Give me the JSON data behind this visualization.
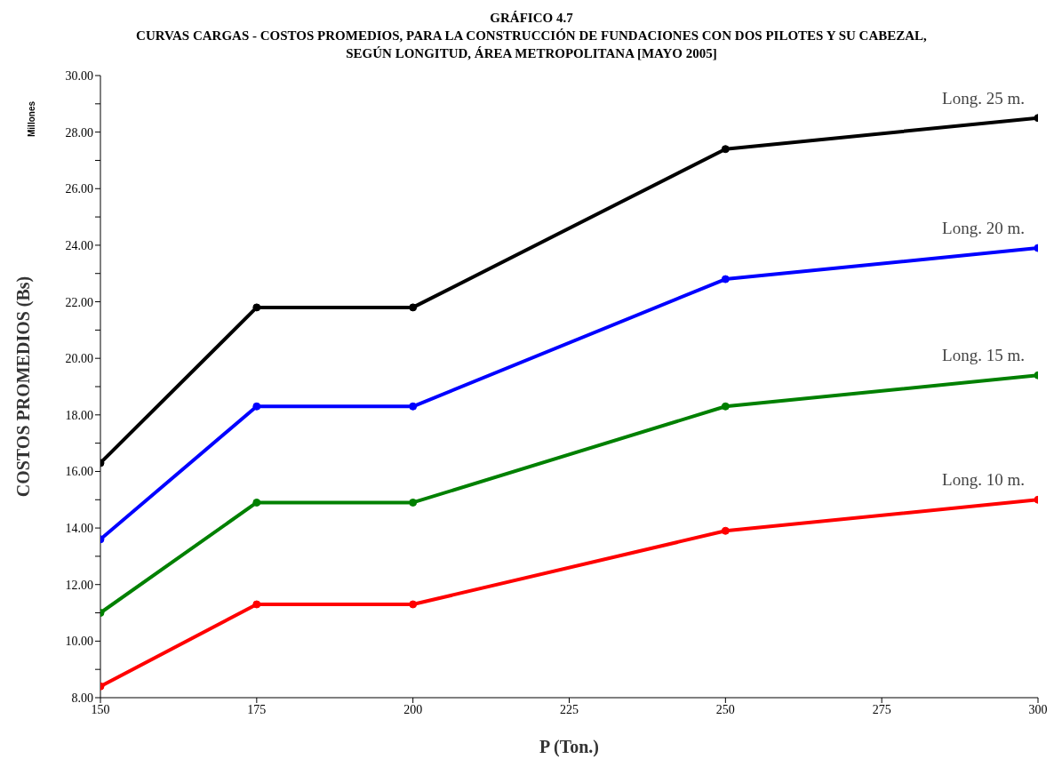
{
  "chart_data": {
    "type": "line",
    "title": "GRÁFICO 4.7",
    "subtitle": "CURVAS CARGAS - COSTOS PROMEDIOS, PARA LA CONSTRUCCIÓN DE FUNDACIONES CON DOS PILOTES Y SU CABEZAL, SEGÚN LONGITUD, ÁREA METROPOLITANA [MAYO 2005]",
    "xlabel": "P (Ton.)",
    "ylabel": "COSTOS PROMEDIOS (Bs)",
    "annotations": [
      "Millones"
    ],
    "x": [
      150,
      175,
      200,
      250,
      300
    ],
    "series": [
      {
        "name": "Long. 25 m.",
        "color": "#000000",
        "values": [
          16.3,
          21.8,
          21.8,
          27.4,
          28.5
        ]
      },
      {
        "name": "Long. 20 m.",
        "color": "#0000ff",
        "values": [
          13.6,
          18.3,
          18.3,
          22.8,
          23.9
        ]
      },
      {
        "name": "Long. 15 m.",
        "color": "#008000",
        "values": [
          11.0,
          14.9,
          14.9,
          18.3,
          19.4
        ]
      },
      {
        "name": "Long. 10 m.",
        "color": "#ff0000",
        "values": [
          8.4,
          11.3,
          11.3,
          13.9,
          15.0
        ]
      }
    ],
    "xlim": [
      150,
      300
    ],
    "xticks": [
      150,
      175,
      200,
      225,
      250,
      275,
      300
    ],
    "ylim": [
      8,
      30
    ],
    "yticks": [
      {
        "value": 8,
        "label": "8.00"
      },
      {
        "value": 9,
        "label": null
      },
      {
        "value": 10,
        "label": "10.00"
      },
      {
        "value": 11,
        "label": null
      },
      {
        "value": 12,
        "label": "12.00"
      },
      {
        "value": 13,
        "label": null
      },
      {
        "value": 14,
        "label": "14.00"
      },
      {
        "value": 15,
        "label": null
      },
      {
        "value": 16,
        "label": "16.00"
      },
      {
        "value": 17,
        "label": null
      },
      {
        "value": 18,
        "label": "18.00"
      },
      {
        "value": 19,
        "label": null
      },
      {
        "value": 20,
        "label": "20.00"
      },
      {
        "value": 21,
        "label": null
      },
      {
        "value": 22,
        "label": "22.00"
      },
      {
        "value": 23,
        "label": null
      },
      {
        "value": 24,
        "label": "24.00"
      },
      {
        "value": 25,
        "label": null
      },
      {
        "value": 26,
        "label": "26.00"
      },
      {
        "value": 27,
        "label": null
      },
      {
        "value": 28,
        "label": "28.00"
      },
      {
        "value": 29,
        "label": null
      },
      {
        "value": 30,
        "label": "30.00"
      }
    ],
    "grid": false,
    "marker": "circle",
    "line_style": "solid"
  }
}
